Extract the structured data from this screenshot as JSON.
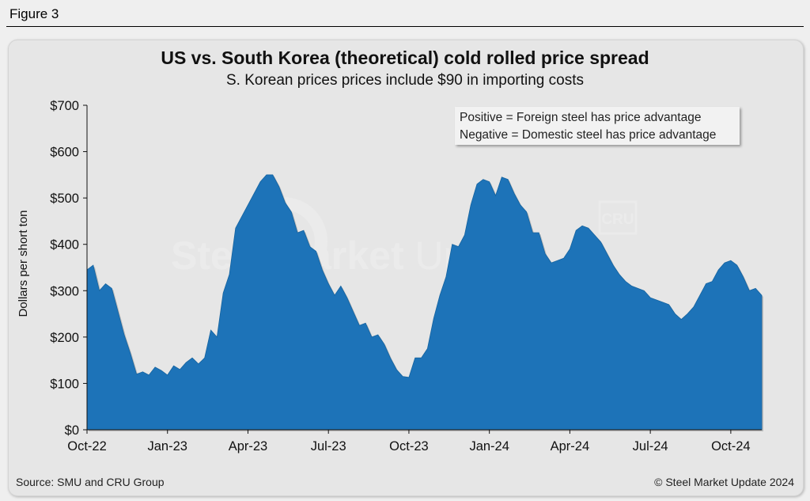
{
  "figure_label": "Figure 3",
  "source": "Source: SMU and CRU Group",
  "copyright": "© Steel Market Update 2024",
  "legend_note": {
    "line1": "Positive = Foreign steel has price advantage",
    "line2": "Negative = Domestic steel has price advantage"
  },
  "watermark": {
    "brand_bold": "Steel Market",
    "brand_light": " Update",
    "badge": "CRU"
  },
  "colors": {
    "area_fill": "#1d73b8",
    "area_edge": "#15639f"
  },
  "chart_data": {
    "type": "area",
    "title": "US vs. South Korea (theoretical) cold rolled price spread",
    "subtitle": "S. Korean prices prices include $90 in importing costs",
    "xlabel": "",
    "ylabel": "Dollars per short ton",
    "ylim": [
      0,
      700
    ],
    "y_ticks": [
      0,
      100,
      200,
      300,
      400,
      500,
      600,
      700
    ],
    "y_tick_labels": [
      "$0",
      "$100",
      "$200",
      "$300",
      "$400",
      "$500",
      "$600",
      "$700"
    ],
    "x_tick_labels": [
      "Oct-22",
      "Jan-23",
      "Apr-23",
      "Jul-23",
      "Oct-23",
      "Jan-24",
      "Apr-24",
      "Jul-24",
      "Oct-24"
    ],
    "x_tick_indices": [
      0,
      13,
      26,
      39,
      52,
      65,
      78,
      91,
      104
    ],
    "grid": false,
    "series": [
      {
        "name": "US vs. South Korea cold rolled price spread",
        "values": [
          345,
          355,
          300,
          315,
          305,
          255,
          205,
          165,
          120,
          125,
          118,
          135,
          128,
          118,
          138,
          130,
          145,
          155,
          142,
          155,
          215,
          200,
          295,
          335,
          435,
          460,
          485,
          510,
          535,
          550,
          550,
          525,
          490,
          470,
          425,
          430,
          395,
          385,
          345,
          315,
          290,
          310,
          285,
          255,
          225,
          230,
          200,
          205,
          185,
          155,
          130,
          115,
          113,
          155,
          155,
          175,
          240,
          290,
          330,
          400,
          395,
          420,
          485,
          530,
          540,
          535,
          505,
          545,
          540,
          510,
          485,
          470,
          425,
          425,
          380,
          360,
          365,
          370,
          390,
          430,
          440,
          435,
          420,
          405,
          380,
          355,
          335,
          320,
          310,
          305,
          300,
          285,
          280,
          275,
          270,
          250,
          238,
          250,
          265,
          290,
          315,
          320,
          345,
          360,
          365,
          355,
          330,
          300,
          305,
          290
        ]
      }
    ]
  }
}
